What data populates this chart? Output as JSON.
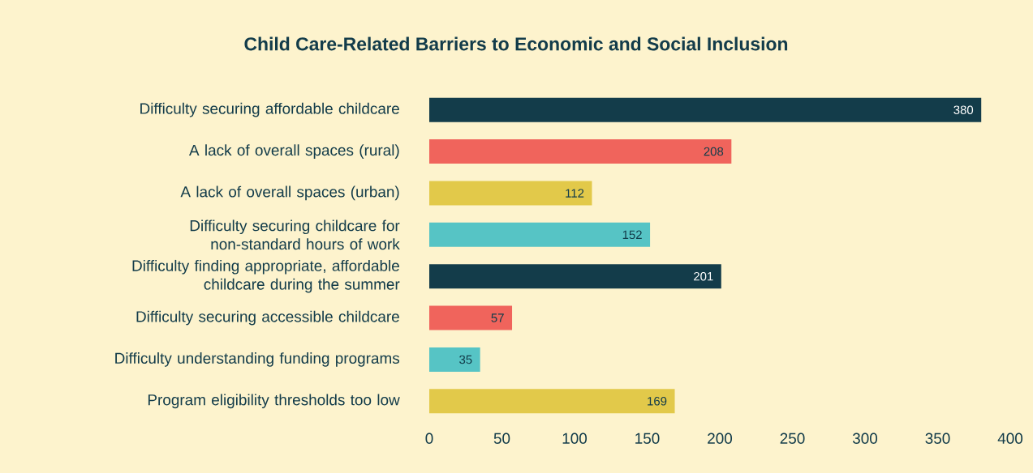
{
  "chart_data": {
    "type": "bar",
    "orientation": "horizontal",
    "title": "Child Care-Related Barriers to Economic and Social Inclusion",
    "categories": [
      "Difficulty securing affordable childcare",
      "A lack of overall spaces (rural)",
      "A lack of overall spaces (urban)",
      "Difficulty securing childcare for non-standard hours of work",
      "Difficulty finding appropriate, affordable childcare during the summer",
      "Difficulty securing accessible childcare",
      "Difficulty understanding funding programs",
      "Program eligibility thresholds too low"
    ],
    "values": [
      380,
      208,
      112,
      152,
      201,
      57,
      35,
      169
    ],
    "colors": [
      "#133c4a",
      "#f0645c",
      "#e2c94a",
      "#56c4c5",
      "#133c4a",
      "#f0645c",
      "#56c4c5",
      "#e2c94a"
    ],
    "xlim": [
      0,
      400
    ],
    "xticks": [
      0,
      50,
      100,
      150,
      200,
      250,
      300,
      350,
      400
    ],
    "data_labels": true
  }
}
